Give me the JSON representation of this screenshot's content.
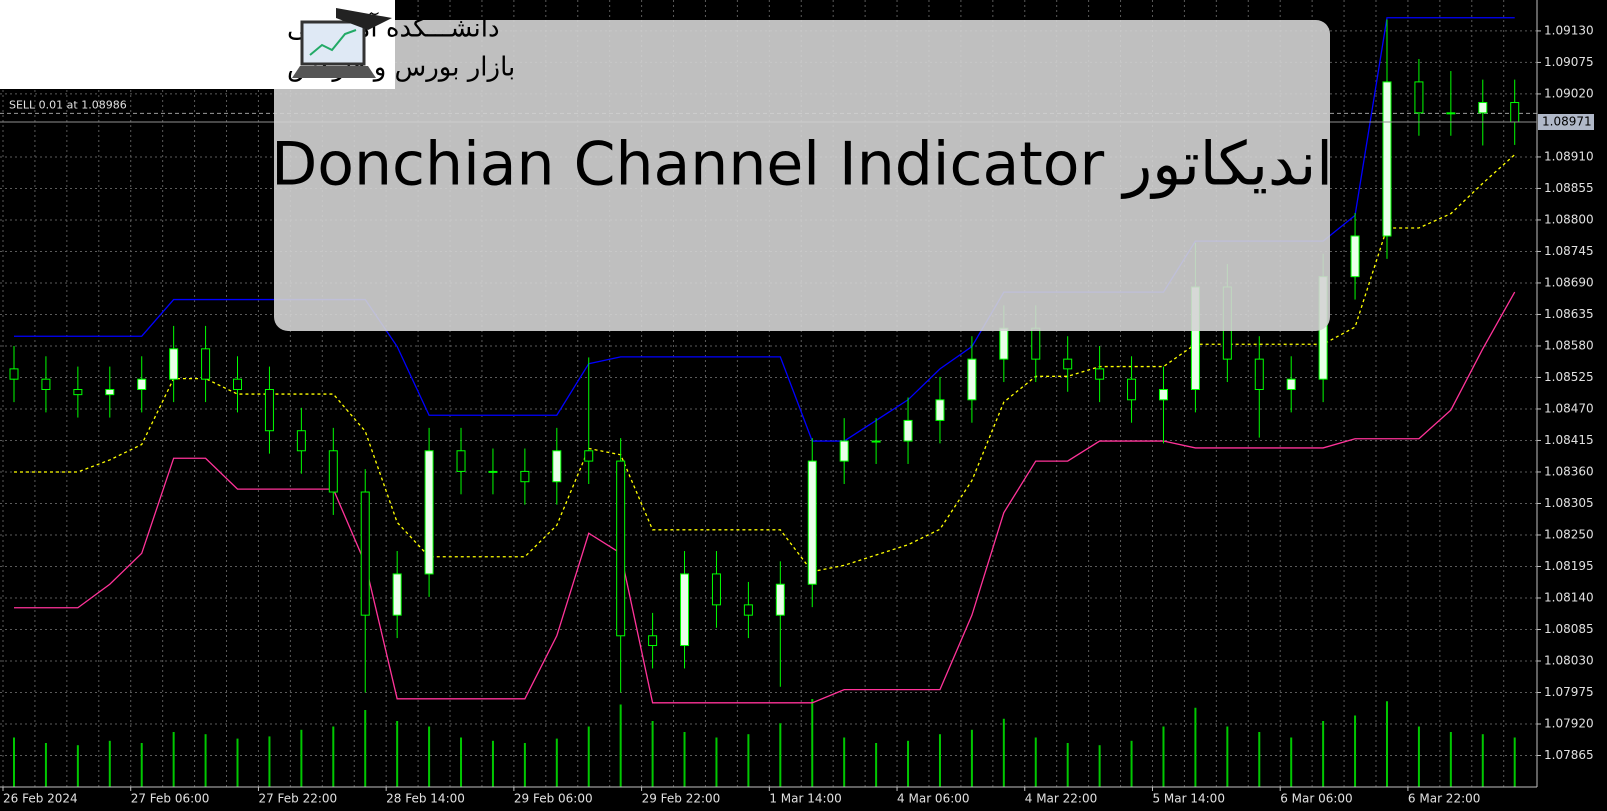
{
  "chart_data": {
    "type": "candlestick",
    "title": "اندیکاتور Donchian Channel Indicator",
    "trade": {
      "label": "SELL 0.01 at 1.08986",
      "price": 1.08986
    },
    "last_price": {
      "value": 1.08971,
      "label": "1.08971"
    },
    "categories": [
      "26 Feb 2024",
      null,
      null,
      null,
      "27 Feb 06:00",
      null,
      null,
      null,
      "27 Feb 22:00",
      null,
      null,
      null,
      "28 Feb 14:00",
      null,
      null,
      null,
      "29 Feb 06:00",
      null,
      null,
      null,
      "29 Feb 22:00",
      null,
      null,
      null,
      "1 Mar 14:00",
      null,
      null,
      null,
      "4 Mar 06:00",
      null,
      null,
      null,
      "4 Mar 22:00",
      null,
      null,
      null,
      "5 Mar 14:00",
      null,
      null,
      null,
      "6 Mar 06:00",
      null,
      null,
      null,
      "6 Mar 22:00",
      null,
      null,
      null
    ],
    "candles": {
      "color": "#00ff00",
      "open": [
        1.0854,
        1.08522,
        1.08504,
        1.08495,
        1.08504,
        1.08522,
        1.08575,
        1.08522,
        1.08504,
        1.08432,
        1.08397,
        1.08325,
        1.0811,
        1.08182,
        1.08397,
        1.08361,
        1.08361,
        1.08343,
        1.08397,
        1.08379,
        1.08074,
        1.08057,
        1.08182,
        1.08128,
        1.0811,
        1.08164,
        1.08379,
        1.08414,
        1.08414,
        1.0845,
        1.08486,
        1.08557,
        1.08611,
        1.08557,
        1.0854,
        1.08522,
        1.08486,
        1.08504,
        1.08683,
        1.08557,
        1.08504,
        1.08522,
        1.08701,
        1.08772,
        1.09041,
        1.08987,
        1.08987,
        1.09005
      ],
      "high": [
        1.0858,
        1.08562,
        1.08544,
        1.08544,
        1.08562,
        1.08615,
        1.08615,
        1.08562,
        1.08544,
        1.08472,
        1.08437,
        1.08365,
        1.08222,
        1.08437,
        1.08437,
        1.08401,
        1.08401,
        1.08437,
        1.0856,
        1.08419,
        1.08114,
        1.08222,
        1.08222,
        1.08168,
        1.08204,
        1.08419,
        1.08454,
        1.08454,
        1.0849,
        1.08526,
        1.08597,
        1.08651,
        1.08651,
        1.08597,
        1.0858,
        1.08562,
        1.08544,
        1.0876,
        1.08723,
        1.08597,
        1.08562,
        1.08741,
        1.08812,
        1.0915,
        1.09081,
        1.0906,
        1.09045,
        1.09045
      ],
      "low": [
        1.08482,
        1.08464,
        1.08455,
        1.08455,
        1.08464,
        1.08482,
        1.08482,
        1.08464,
        1.08392,
        1.08357,
        1.08285,
        1.07975,
        1.0807,
        1.08142,
        1.08321,
        1.08321,
        1.08303,
        1.08303,
        1.08339,
        1.07975,
        1.08017,
        1.08017,
        1.08088,
        1.0807,
        1.07985,
        1.08124,
        1.08339,
        1.08374,
        1.08374,
        1.0841,
        1.08446,
        1.08517,
        1.08517,
        1.085,
        1.08482,
        1.08446,
        1.0841,
        1.08464,
        1.08517,
        1.0842,
        1.08464,
        1.08482,
        1.08661,
        1.08732,
        1.08947,
        1.08947,
        1.0893,
        1.08931
      ],
      "close": [
        1.08522,
        1.08504,
        1.08495,
        1.08504,
        1.08522,
        1.08575,
        1.08522,
        1.08504,
        1.08432,
        1.08397,
        1.08325,
        1.0811,
        1.08182,
        1.08397,
        1.08361,
        1.08361,
        1.08343,
        1.08397,
        1.08379,
        1.08074,
        1.08057,
        1.08182,
        1.08128,
        1.0811,
        1.08164,
        1.08379,
        1.08414,
        1.08414,
        1.0845,
        1.08486,
        1.08557,
        1.08611,
        1.08557,
        1.0854,
        1.08522,
        1.08486,
        1.08504,
        1.08683,
        1.08557,
        1.08504,
        1.08522,
        1.08701,
        1.08772,
        1.09041,
        1.08987,
        1.08987,
        1.09005,
        1.08971
      ]
    },
    "channel": {
      "upper": {
        "color": "#0000ff",
        "values": [
          1.08597,
          1.08597,
          1.08597,
          1.08597,
          1.08597,
          1.08661,
          1.08661,
          1.08661,
          1.08661,
          1.08661,
          1.08661,
          1.08661,
          1.08579,
          1.08459,
          1.08459,
          1.08459,
          1.08459,
          1.08459,
          1.08549,
          1.08561,
          1.08561,
          1.08561,
          1.08561,
          1.08561,
          1.08561,
          1.08414,
          1.08414,
          1.0845,
          1.08486,
          1.0854,
          1.08579,
          1.08674,
          1.08674,
          1.08674,
          1.08674,
          1.08674,
          1.08674,
          1.08763,
          1.08763,
          1.08763,
          1.08763,
          1.08763,
          1.08808,
          1.09153,
          1.09153,
          1.09153,
          1.09153,
          1.09153
        ]
      },
      "middle": {
        "color": "#ffff00",
        "values": [
          1.0836,
          1.0836,
          1.0836,
          1.08381,
          1.08408,
          1.08523,
          1.08523,
          1.08496,
          1.08496,
          1.08496,
          1.08496,
          1.08431,
          1.08272,
          1.08212,
          1.08212,
          1.08212,
          1.08212,
          1.08267,
          1.08401,
          1.0839,
          1.08259,
          1.08259,
          1.08259,
          1.08259,
          1.08259,
          1.08186,
          1.08197,
          1.08215,
          1.08233,
          1.0826,
          1.08345,
          1.08482,
          1.08527,
          1.08527,
          1.08544,
          1.08544,
          1.08544,
          1.08583,
          1.08583,
          1.08583,
          1.08583,
          1.08583,
          1.08613,
          1.08786,
          1.08786,
          1.08811,
          1.08864,
          1.08914
        ]
      },
      "lower": {
        "color": "#ff3399",
        "values": [
          1.08123,
          1.08123,
          1.08123,
          1.08164,
          1.08218,
          1.08384,
          1.08384,
          1.0833,
          1.0833,
          1.0833,
          1.0833,
          1.082,
          1.07964,
          1.07964,
          1.07964,
          1.07964,
          1.07964,
          1.08074,
          1.08253,
          1.08218,
          1.07957,
          1.07957,
          1.07957,
          1.07957,
          1.07957,
          1.07957,
          1.0798,
          1.0798,
          1.0798,
          1.0798,
          1.0811,
          1.08289,
          1.08379,
          1.08379,
          1.08414,
          1.08414,
          1.08414,
          1.08402,
          1.08402,
          1.08402,
          1.08402,
          1.08402,
          1.08418,
          1.08418,
          1.08418,
          1.08468,
          1.08575,
          1.08674
        ]
      }
    },
    "volume": {
      "color": "#00c800",
      "lim": [
        0,
        100
      ],
      "values": [
        45,
        40,
        38,
        42,
        40,
        50,
        48,
        44,
        46,
        52,
        55,
        70,
        60,
        55,
        45,
        42,
        40,
        44,
        55,
        75,
        60,
        50,
        45,
        48,
        58,
        80,
        45,
        40,
        42,
        48,
        52,
        62,
        45,
        40,
        38,
        42,
        55,
        72,
        55,
        50,
        45,
        60,
        65,
        78,
        55,
        50,
        48,
        45
      ]
    },
    "ylim": [
      1.0781,
      1.09184
    ],
    "yticks": [
      {
        "value": 1.0913,
        "label": "1.09130"
      },
      {
        "value": 1.09075,
        "label": "1.09075"
      },
      {
        "value": 1.0902,
        "label": "1.09020"
      },
      {
        "value": 1.0891,
        "label": "1.08910"
      },
      {
        "value": 1.08855,
        "label": "1.08855"
      },
      {
        "value": 1.088,
        "label": "1.08800"
      },
      {
        "value": 1.08745,
        "label": "1.08745"
      },
      {
        "value": 1.0869,
        "label": "1.08690"
      },
      {
        "value": 1.08635,
        "label": "1.08635"
      },
      {
        "value": 1.0858,
        "label": "1.08580"
      },
      {
        "value": 1.08525,
        "label": "1.08525"
      },
      {
        "value": 1.0847,
        "label": "1.08470"
      },
      {
        "value": 1.08415,
        "label": "1.08415"
      },
      {
        "value": 1.0836,
        "label": "1.08360"
      },
      {
        "value": 1.08305,
        "label": "1.08305"
      },
      {
        "value": 1.0825,
        "label": "1.08250"
      },
      {
        "value": 1.08195,
        "label": "1.08195"
      },
      {
        "value": 1.0814,
        "label": "1.08140"
      },
      {
        "value": 1.08085,
        "label": "1.08085"
      },
      {
        "value": 1.0803,
        "label": "1.08030"
      },
      {
        "value": 1.07975,
        "label": "1.07975"
      },
      {
        "value": 1.0792,
        "label": "1.07920"
      },
      {
        "value": 1.07865,
        "label": "1.07865"
      }
    ],
    "grid": true
  },
  "logo": {
    "line1": "دانشـــکده آموزشی",
    "line2": "بازار بورس و فارکس"
  }
}
